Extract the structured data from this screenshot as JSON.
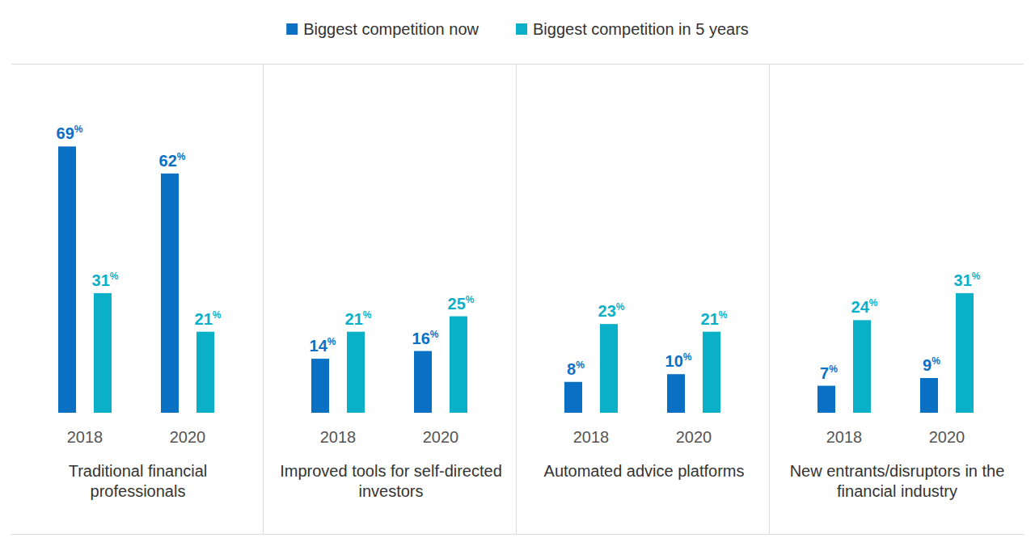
{
  "chart_data": [
    {
      "type": "bar",
      "title": "Traditional financial professionals",
      "categories": [
        "2018",
        "2020"
      ],
      "series": [
        {
          "name": "Biggest competition now",
          "color": "#0a70c4",
          "values": [
            69,
            62
          ],
          "value_labels": [
            "69%",
            "62%"
          ]
        },
        {
          "name": "Biggest competition in 5 years",
          "color": "#0ab0c8",
          "values": [
            31,
            21
          ],
          "value_labels": [
            "31%",
            "21%"
          ]
        }
      ],
      "ylim": [
        0,
        72
      ],
      "data_labels": true,
      "tick_labels": "x",
      "grid": false,
      "legend": "top"
    },
    {
      "type": "bar",
      "title": "Improved tools for self-directed investors",
      "categories": [
        "2018",
        "2020"
      ],
      "series": [
        {
          "color": "#0a70c4",
          "values": [
            14,
            16
          ],
          "value_labels": [
            "14%",
            "16%"
          ]
        },
        {
          "color": "#0ab0c8",
          "values": [
            21,
            25
          ],
          "value_labels": [
            "21%",
            "25%"
          ]
        }
      ],
      "ylim": [
        0,
        72
      ],
      "data_labels": true,
      "tick_labels": "x",
      "grid": false
    },
    {
      "type": "bar",
      "title": "Automated advice platforms",
      "categories": [
        "2018",
        "2020"
      ],
      "series": [
        {
          "color": "#0a70c4",
          "values": [
            8,
            10
          ],
          "value_labels": [
            "8%",
            "10%"
          ]
        },
        {
          "color": "#0ab0c8",
          "values": [
            23,
            21
          ],
          "value_labels": [
            "23%",
            "21%"
          ]
        }
      ],
      "ylim": [
        0,
        72
      ],
      "data_labels": true,
      "tick_labels": "x",
      "grid": false
    },
    {
      "type": "bar",
      "title": "New entrants/disruptors in the financial industry",
      "categories": [
        "2018",
        "2020"
      ],
      "series": [
        {
          "color": "#0a70c4",
          "values": [
            7,
            9
          ],
          "value_labels": [
            "7%",
            "9%"
          ]
        },
        {
          "color": "#0ab0c8",
          "values": [
            24,
            31
          ],
          "value_labels": [
            "24%",
            "31%"
          ]
        }
      ],
      "ylim": [
        0,
        72
      ],
      "data_labels": true,
      "tick_labels": "x",
      "grid": false
    }
  ]
}
